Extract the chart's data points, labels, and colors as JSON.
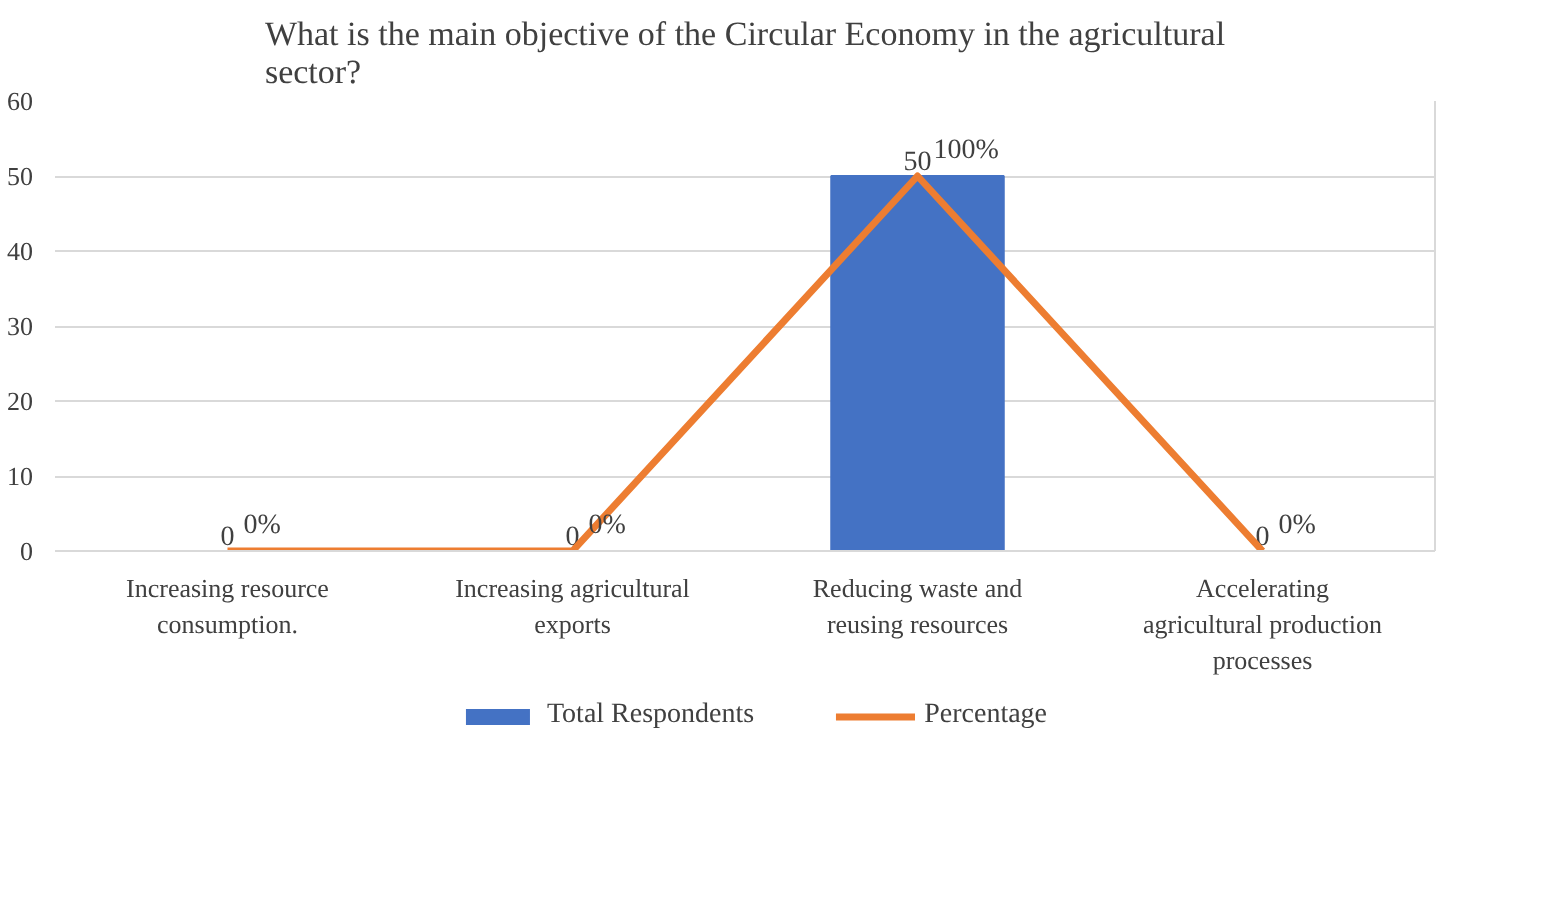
{
  "chart_data": {
    "type": "bar",
    "title": "What is the main objective of the Circular Economy in the agricultural sector?",
    "categories": [
      "Increasing resource consumption.",
      "Increasing agricultural exports",
      "Reducing waste and reusing resources",
      "Accelerating agricultural production processes"
    ],
    "series": [
      {
        "name": "Total Respondents",
        "color": "#4472c4",
        "values": [
          0,
          0,
          50,
          0
        ],
        "data_labels": true
      },
      {
        "name": "Percentage",
        "type": "line",
        "axis": "y2",
        "color": "#ed7d31",
        "values": [
          0,
          0,
          100,
          0
        ],
        "value_labels": [
          "0%",
          "0%",
          "100%",
          "0%"
        ],
        "marker": "none",
        "line_style": "solid"
      }
    ],
    "ylim": [
      0,
      60
    ],
    "yticks": [
      0,
      10,
      20,
      30,
      40,
      50,
      60
    ],
    "y2lim": [
      0,
      120
    ],
    "grid": "y",
    "legend": "bottom"
  }
}
